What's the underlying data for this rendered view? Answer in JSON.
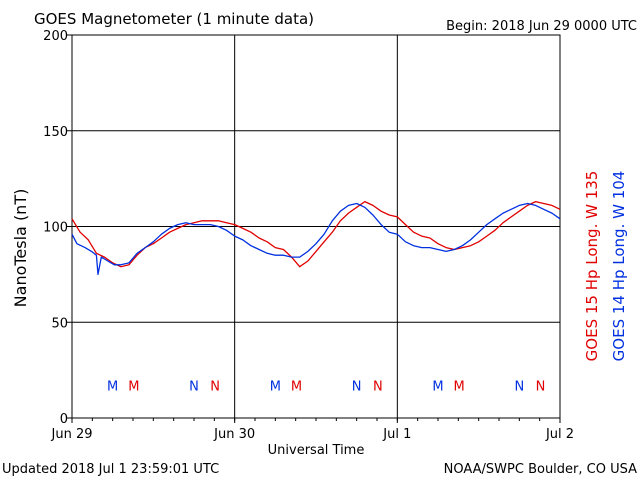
{
  "header": {
    "title": "GOES Magnetometer (1 minute data)",
    "begin": "Begin:  2018 Jun 29 0000 UTC"
  },
  "footer": {
    "updated": "Updated 2018 Jul  1 23:59:01 UTC",
    "credit": "NOAA/SWPC Boulder, CO USA"
  },
  "colors": {
    "goes15": "#e00000",
    "goes14": "#0030e0",
    "axis": "#000000",
    "background": "#ffffff"
  },
  "chart_data": {
    "type": "line",
    "xlabel": "Universal Time",
    "ylabel": "NanoTesla (nT)",
    "x_unit": "days since 2018 Jun 29 0000 UTC",
    "xlim": [
      0,
      3
    ],
    "ylim": [
      0,
      200
    ],
    "yticks": [
      0,
      50,
      100,
      150,
      200
    ],
    "xticks": [
      {
        "x": 0,
        "label": "Jun 29"
      },
      {
        "x": 1,
        "label": "Jun 30"
      },
      {
        "x": 2,
        "label": "Jul 1"
      },
      {
        "x": 3,
        "label": "Jul 2"
      }
    ],
    "grid": true,
    "legend_placement": "right, rotated vertical",
    "series": [
      {
        "name": "GOES 15 Hp  Long. W 135",
        "color": "#e00000",
        "points": [
          [
            0.0,
            104
          ],
          [
            0.05,
            97
          ],
          [
            0.1,
            93
          ],
          [
            0.15,
            86
          ],
          [
            0.2,
            84
          ],
          [
            0.25,
            81
          ],
          [
            0.3,
            79
          ],
          [
            0.35,
            80
          ],
          [
            0.4,
            85
          ],
          [
            0.45,
            89
          ],
          [
            0.5,
            91
          ],
          [
            0.55,
            94
          ],
          [
            0.6,
            97
          ],
          [
            0.65,
            99
          ],
          [
            0.7,
            101
          ],
          [
            0.75,
            102
          ],
          [
            0.8,
            103
          ],
          [
            0.85,
            103
          ],
          [
            0.9,
            103
          ],
          [
            0.95,
            102
          ],
          [
            1.0,
            101
          ],
          [
            1.05,
            99
          ],
          [
            1.1,
            97
          ],
          [
            1.15,
            94
          ],
          [
            1.2,
            92
          ],
          [
            1.25,
            89
          ],
          [
            1.3,
            88
          ],
          [
            1.35,
            84
          ],
          [
            1.4,
            79
          ],
          [
            1.45,
            82
          ],
          [
            1.5,
            87
          ],
          [
            1.55,
            92
          ],
          [
            1.6,
            97
          ],
          [
            1.65,
            103
          ],
          [
            1.7,
            107
          ],
          [
            1.75,
            110
          ],
          [
            1.8,
            113
          ],
          [
            1.85,
            111
          ],
          [
            1.9,
            108
          ],
          [
            1.95,
            106
          ],
          [
            2.0,
            105
          ],
          [
            2.05,
            101
          ],
          [
            2.1,
            97
          ],
          [
            2.15,
            95
          ],
          [
            2.2,
            94
          ],
          [
            2.25,
            91
          ],
          [
            2.3,
            89
          ],
          [
            2.35,
            88
          ],
          [
            2.4,
            89
          ],
          [
            2.45,
            90
          ],
          [
            2.5,
            92
          ],
          [
            2.55,
            95
          ],
          [
            2.6,
            98
          ],
          [
            2.65,
            102
          ],
          [
            2.7,
            105
          ],
          [
            2.75,
            108
          ],
          [
            2.8,
            111
          ],
          [
            2.85,
            113
          ],
          [
            2.9,
            112
          ],
          [
            2.95,
            111
          ],
          [
            3.0,
            109
          ]
        ]
      },
      {
        "name": "GOES 14 Hp  Long. W 104",
        "color": "#0030e0",
        "points": [
          [
            0.0,
            96
          ],
          [
            0.03,
            91
          ],
          [
            0.08,
            89
          ],
          [
            0.12,
            87
          ],
          [
            0.15,
            85
          ],
          [
            0.16,
            75
          ],
          [
            0.18,
            84
          ],
          [
            0.22,
            82
          ],
          [
            0.26,
            80
          ],
          [
            0.3,
            80
          ],
          [
            0.35,
            81
          ],
          [
            0.4,
            86
          ],
          [
            0.45,
            89
          ],
          [
            0.5,
            92
          ],
          [
            0.55,
            96
          ],
          [
            0.6,
            99
          ],
          [
            0.65,
            101
          ],
          [
            0.7,
            102
          ],
          [
            0.75,
            101
          ],
          [
            0.8,
            101
          ],
          [
            0.85,
            101
          ],
          [
            0.9,
            100
          ],
          [
            0.95,
            98
          ],
          [
            1.0,
            95
          ],
          [
            1.05,
            93
          ],
          [
            1.1,
            90
          ],
          [
            1.15,
            88
          ],
          [
            1.2,
            86
          ],
          [
            1.25,
            85
          ],
          [
            1.3,
            85
          ],
          [
            1.35,
            84
          ],
          [
            1.4,
            84
          ],
          [
            1.45,
            87
          ],
          [
            1.5,
            91
          ],
          [
            1.55,
            96
          ],
          [
            1.6,
            103
          ],
          [
            1.65,
            108
          ],
          [
            1.7,
            111
          ],
          [
            1.75,
            112
          ],
          [
            1.8,
            110
          ],
          [
            1.85,
            106
          ],
          [
            1.9,
            101
          ],
          [
            1.95,
            97
          ],
          [
            2.0,
            96
          ],
          [
            2.05,
            92
          ],
          [
            2.1,
            90
          ],
          [
            2.15,
            89
          ],
          [
            2.2,
            89
          ],
          [
            2.25,
            88
          ],
          [
            2.3,
            87
          ],
          [
            2.35,
            88
          ],
          [
            2.4,
            90
          ],
          [
            2.45,
            93
          ],
          [
            2.5,
            97
          ],
          [
            2.55,
            101
          ],
          [
            2.6,
            104
          ],
          [
            2.65,
            107
          ],
          [
            2.7,
            109
          ],
          [
            2.75,
            111
          ],
          [
            2.8,
            112
          ],
          [
            2.85,
            111
          ],
          [
            2.9,
            109
          ],
          [
            2.95,
            107
          ],
          [
            3.0,
            104
          ]
        ]
      }
    ],
    "annotations": [
      {
        "label": "M",
        "x": 0.25,
        "series": "GOES 14"
      },
      {
        "label": "M",
        "x": 0.38,
        "series": "GOES 15"
      },
      {
        "label": "N",
        "x": 0.75,
        "series": "GOES 14"
      },
      {
        "label": "N",
        "x": 0.88,
        "series": "GOES 15"
      },
      {
        "label": "M",
        "x": 1.25,
        "series": "GOES 14"
      },
      {
        "label": "M",
        "x": 1.38,
        "series": "GOES 15"
      },
      {
        "label": "N",
        "x": 1.75,
        "series": "GOES 14"
      },
      {
        "label": "N",
        "x": 1.88,
        "series": "GOES 15"
      },
      {
        "label": "M",
        "x": 2.25,
        "series": "GOES 14"
      },
      {
        "label": "M",
        "x": 2.38,
        "series": "GOES 15"
      },
      {
        "label": "N",
        "x": 2.75,
        "series": "GOES 14"
      },
      {
        "label": "N",
        "x": 2.88,
        "series": "GOES 15"
      }
    ],
    "annotation_y": 17
  }
}
